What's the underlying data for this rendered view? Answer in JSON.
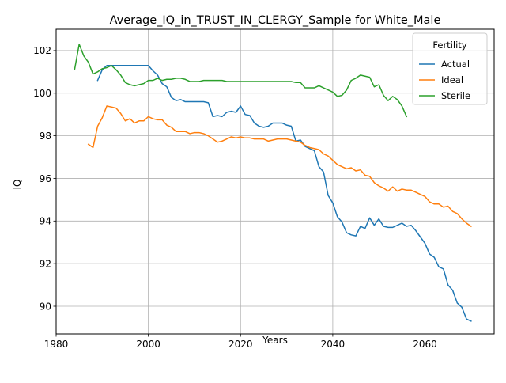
{
  "chart_data": {
    "type": "line",
    "title": "Average_IQ_in_TRUST_IN_CLERGY_Sample for White_Male",
    "xlabel": "Years",
    "ylabel": "IQ",
    "xlim": [
      1980,
      2075
    ],
    "ylim": [
      88.7,
      103.0
    ],
    "xticks": [
      1980,
      2000,
      2020,
      2040,
      2060
    ],
    "yticks": [
      90,
      92,
      94,
      96,
      98,
      100,
      102
    ],
    "grid": true,
    "legend": {
      "title": "Fertility",
      "placement": "top-right"
    },
    "series": [
      {
        "name": "Actual",
        "color": "#1f77b4",
        "x": [
          1989,
          1990,
          1991,
          1992,
          1993,
          1994,
          1995,
          1996,
          1997,
          1998,
          1999,
          2000,
          2001,
          2002,
          2003,
          2004,
          2005,
          2006,
          2007,
          2008,
          2009,
          2010,
          2011,
          2012,
          2013,
          2014,
          2015,
          2016,
          2017,
          2018,
          2019,
          2020,
          2021,
          2022,
          2023,
          2024,
          2025,
          2026,
          2027,
          2028,
          2029,
          2030,
          2031,
          2032,
          2033,
          2034,
          2035,
          2036,
          2037,
          2038,
          2039,
          2040,
          2041,
          2042,
          2043,
          2044,
          2045,
          2046,
          2047,
          2048,
          2049,
          2050,
          2051,
          2052,
          2053,
          2054,
          2055,
          2056,
          2057,
          2058,
          2059,
          2060,
          2061,
          2062,
          2063,
          2064,
          2065,
          2066,
          2067,
          2068,
          2069,
          2070
        ],
        "y": [
          100.6,
          101.1,
          101.3,
          101.3,
          101.3,
          101.3,
          101.3,
          101.3,
          101.3,
          101.3,
          101.3,
          101.3,
          101.05,
          100.85,
          100.45,
          100.3,
          99.8,
          99.65,
          99.7,
          99.6,
          99.6,
          99.6,
          99.6,
          99.6,
          99.55,
          98.9,
          98.95,
          98.9,
          99.1,
          99.15,
          99.1,
          99.4,
          99.0,
          98.95,
          98.6,
          98.45,
          98.4,
          98.45,
          98.6,
          98.6,
          98.6,
          98.5,
          98.45,
          97.75,
          97.8,
          97.5,
          97.4,
          97.3,
          96.55,
          96.3,
          95.2,
          94.85,
          94.2,
          93.95,
          93.45,
          93.35,
          93.3,
          93.75,
          93.65,
          94.15,
          93.8,
          94.1,
          93.75,
          93.7,
          93.7,
          93.8,
          93.9,
          93.75,
          93.8,
          93.55,
          93.25,
          92.95,
          92.45,
          92.3,
          91.85,
          91.75,
          91.0,
          90.75,
          90.15,
          89.95,
          89.4,
          89.3
        ]
      },
      {
        "name": "Ideal",
        "color": "#ff7f0e",
        "x": [
          1987,
          1988,
          1989,
          1990,
          1991,
          1992,
          1993,
          1994,
          1995,
          1996,
          1997,
          1998,
          1999,
          2000,
          2001,
          2002,
          2003,
          2004,
          2005,
          2006,
          2007,
          2008,
          2009,
          2010,
          2011,
          2012,
          2013,
          2014,
          2015,
          2016,
          2017,
          2018,
          2019,
          2020,
          2021,
          2022,
          2023,
          2024,
          2025,
          2026,
          2027,
          2028,
          2029,
          2030,
          2031,
          2032,
          2033,
          2034,
          2035,
          2036,
          2037,
          2038,
          2039,
          2040,
          2041,
          2042,
          2043,
          2044,
          2045,
          2046,
          2047,
          2048,
          2049,
          2050,
          2051,
          2052,
          2053,
          2054,
          2055,
          2056,
          2057,
          2058,
          2059,
          2060,
          2061,
          2062,
          2063,
          2064,
          2065,
          2066,
          2067,
          2068,
          2069,
          2070
        ],
        "y": [
          97.6,
          97.45,
          98.45,
          98.85,
          99.4,
          99.35,
          99.3,
          99.05,
          98.7,
          98.8,
          98.6,
          98.7,
          98.7,
          98.9,
          98.8,
          98.75,
          98.75,
          98.5,
          98.4,
          98.2,
          98.2,
          98.2,
          98.1,
          98.15,
          98.15,
          98.1,
          98.0,
          97.85,
          97.7,
          97.75,
          97.85,
          97.95,
          97.9,
          97.95,
          97.9,
          97.9,
          97.85,
          97.85,
          97.85,
          97.75,
          97.8,
          97.85,
          97.85,
          97.85,
          97.8,
          97.75,
          97.7,
          97.55,
          97.45,
          97.4,
          97.35,
          97.15,
          97.05,
          96.85,
          96.65,
          96.55,
          96.45,
          96.5,
          96.35,
          96.4,
          96.15,
          96.1,
          95.8,
          95.65,
          95.55,
          95.4,
          95.6,
          95.4,
          95.5,
          95.45,
          95.45,
          95.35,
          95.25,
          95.15,
          94.9,
          94.8,
          94.8,
          94.65,
          94.7,
          94.45,
          94.35,
          94.1,
          93.9,
          93.75
        ]
      },
      {
        "name": "Sterile",
        "color": "#2ca02c",
        "x": [
          1984,
          1985,
          1986,
          1987,
          1988,
          1989,
          1990,
          1991,
          1992,
          1993,
          1994,
          1995,
          1996,
          1997,
          1998,
          1999,
          2000,
          2001,
          2002,
          2003,
          2004,
          2005,
          2006,
          2007,
          2008,
          2009,
          2010,
          2011,
          2012,
          2013,
          2014,
          2015,
          2016,
          2017,
          2018,
          2019,
          2020,
          2021,
          2022,
          2023,
          2024,
          2025,
          2026,
          2027,
          2028,
          2029,
          2030,
          2031,
          2032,
          2033,
          2034,
          2035,
          2036,
          2037,
          2038,
          2039,
          2040,
          2041,
          2042,
          2043,
          2044,
          2045,
          2046,
          2047,
          2048,
          2049,
          2050,
          2051,
          2052,
          2053,
          2054,
          2055,
          2056
        ],
        "y": [
          101.1,
          102.3,
          101.75,
          101.45,
          100.9,
          101.0,
          101.15,
          101.2,
          101.3,
          101.1,
          100.85,
          100.5,
          100.4,
          100.35,
          100.4,
          100.45,
          100.6,
          100.6,
          100.7,
          100.6,
          100.65,
          100.65,
          100.7,
          100.7,
          100.65,
          100.55,
          100.55,
          100.55,
          100.6,
          100.6,
          100.6,
          100.6,
          100.6,
          100.55,
          100.55,
          100.55,
          100.55,
          100.55,
          100.55,
          100.55,
          100.55,
          100.55,
          100.55,
          100.55,
          100.55,
          100.55,
          100.55,
          100.55,
          100.5,
          100.5,
          100.25,
          100.25,
          100.25,
          100.35,
          100.25,
          100.15,
          100.05,
          99.85,
          99.9,
          100.15,
          100.6,
          100.7,
          100.85,
          100.8,
          100.75,
          100.3,
          100.4,
          99.9,
          99.65,
          99.85,
          99.7,
          99.4,
          98.9
        ]
      }
    ]
  }
}
